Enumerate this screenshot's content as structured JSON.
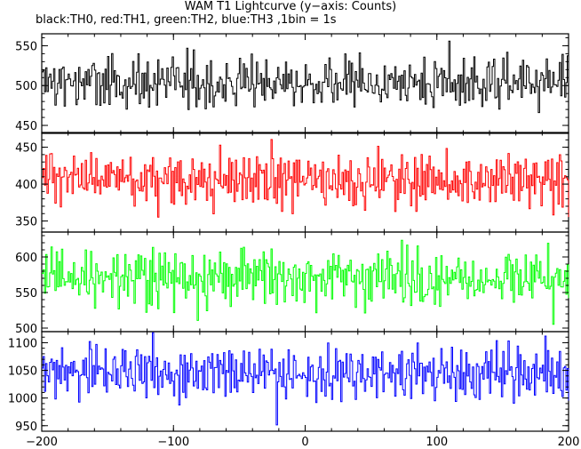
{
  "chart_data": {
    "type": "line",
    "title": "WAM T1 Lightcurve (y−axis: Counts)",
    "subtitle": "black:TH0, red:TH1, green:TH2, blue:TH3 ,1bin = 1s",
    "x_range": [
      -200,
      200
    ],
    "x_ticks": [
      -200,
      -100,
      0,
      100,
      200
    ],
    "x_tick_labels": [
      "−200",
      "−100",
      "0",
      "100",
      "200"
    ],
    "grid": false,
    "panels": [
      {
        "series": "TH0",
        "color": "#000000",
        "ylim": [
          440,
          565
        ],
        "y_ticks": [
          450,
          500,
          550
        ],
        "y_tick_labels": [
          "450",
          "500",
          "550"
        ],
        "mean": 502,
        "noise_sd": 20,
        "samples": [
          500,
          515,
          488,
          532,
          470,
          545,
          502,
          478,
          520,
          560,
          495,
          462,
          510,
          538,
          482,
          505,
          528,
          455,
          512,
          490,
          547,
          476,
          508,
          522,
          485,
          530,
          498,
          468,
          552,
          493
        ]
      },
      {
        "series": "TH1",
        "color": "#ff0000",
        "ylim": [
          335,
          470
        ],
        "y_ticks": [
          350,
          400,
          450
        ],
        "y_tick_labels": [
          "350",
          "400",
          "450"
        ],
        "mean": 405,
        "noise_sd": 20,
        "samples": [
          405,
          430,
          380,
          445,
          395,
          365,
          420,
          460,
          388,
          412,
          350,
          438,
          400,
          425,
          372,
          455,
          408,
          390,
          442,
          360,
          418,
          396,
          432,
          378,
          464,
          402,
          386,
          428,
          345,
          410
        ]
      },
      {
        "series": "TH2",
        "color": "#00ff00",
        "ylim": [
          495,
          635
        ],
        "y_ticks": [
          500,
          550,
          600
        ],
        "y_tick_labels": [
          "500",
          "550",
          "600"
        ],
        "mean": 570,
        "noise_sd": 22,
        "samples": [
          575,
          600,
          548,
          620,
          560,
          530,
          588,
          625,
          555,
          572,
          510,
          605,
          568,
          592,
          540,
          628,
          578,
          552,
          610,
          520,
          585,
          562,
          598,
          545,
          632,
          570,
          558,
          595,
          505,
          580
        ]
      },
      {
        "series": "TH3",
        "color": "#0000ff",
        "ylim": [
          940,
          1120
        ],
        "y_ticks": [
          950,
          1000,
          1050,
          1100
        ],
        "y_tick_labels": [
          "950",
          "1000",
          "1050",
          "1100"
        ],
        "mean": 1045,
        "noise_sd": 28,
        "samples": [
          1050,
          1085,
          1010,
          1110,
          1030,
          980,
          1065,
          1105,
          1020,
          1048,
          960,
          1090,
          1040,
          1075,
          995,
          1115,
          1055,
          1015,
          1095,
          970,
          1060,
          1035,
          1080,
          1005,
          1118,
          1045,
          1025,
          1070,
          950,
          1030
        ]
      }
    ]
  }
}
